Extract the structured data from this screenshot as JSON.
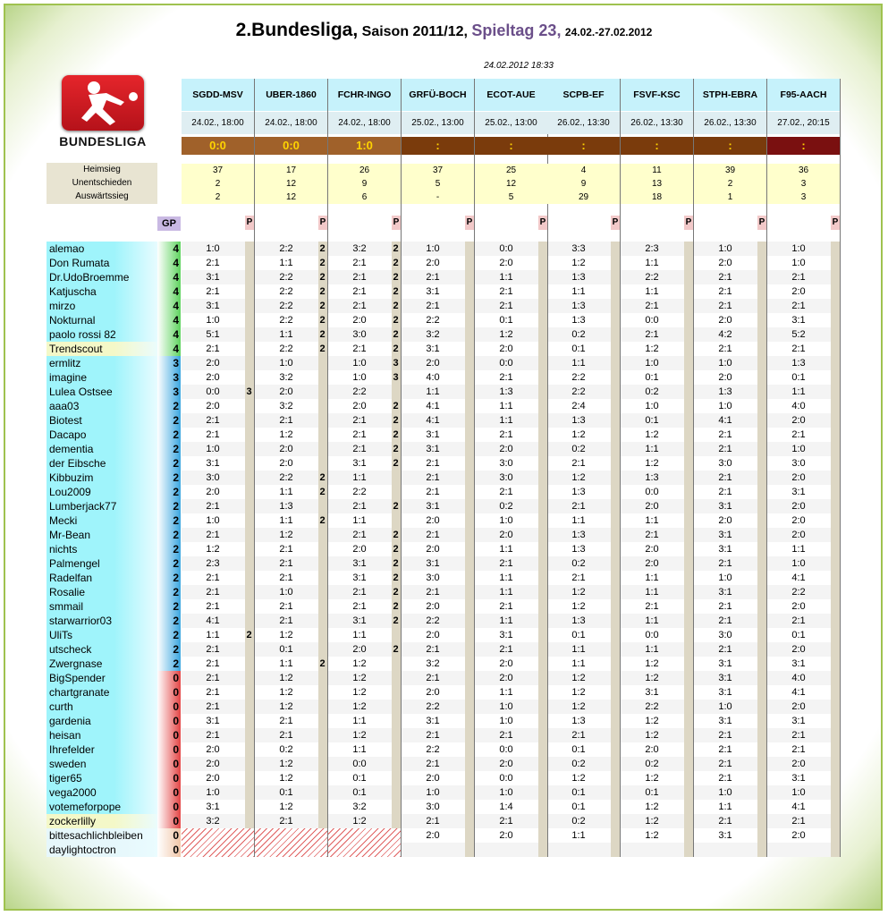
{
  "title": {
    "league": "2.Bundesliga,",
    "season": "Saison 2011/12,",
    "matchday": "Spieltag 23,",
    "dates": "24.02.-27.02.2012"
  },
  "updated": "24.02.2012 18:33",
  "logo_text": "BUNDESLIGA",
  "stats_labels": [
    "Heimsieg",
    "Unentschieden",
    "Auswärtssieg"
  ],
  "gp_label": "GP",
  "p_label": "P",
  "colors": {
    "played_result": "#a0612a",
    "upcoming_result": "#7a3b0c",
    "late_result": "#7a1010",
    "gp_green": "#5fd35f",
    "gp_blue": "#3ba6e0",
    "gp_red": "#e34545",
    "name_cyan": "#9ff4fb"
  },
  "matches": [
    {
      "code": "SGDD-MSV",
      "date": "24.02., 18:00",
      "result": "0:0",
      "home": "37",
      "draw": "2",
      "away": "2"
    },
    {
      "code": "UBER-1860",
      "date": "24.02., 18:00",
      "result": "0:0",
      "home": "17",
      "draw": "12",
      "away": "12"
    },
    {
      "code": "FCHR-INGO",
      "date": "24.02., 18:00",
      "result": "1:0",
      "home": "26",
      "draw": "9",
      "away": "6"
    },
    {
      "code": "GRFÜ-BOCH",
      "date": "25.02., 13:00",
      "result": ":",
      "home": "37",
      "draw": "5",
      "away": "-"
    },
    {
      "code": "ECOT-AUE",
      "date": "25.02., 13:00",
      "result": ":",
      "home": "25",
      "draw": "12",
      "away": "5"
    },
    {
      "code": "SCPB-EF",
      "date": "26.02., 13:30",
      "result": ":",
      "home": "4",
      "draw": "9",
      "away": "29"
    },
    {
      "code": "FSVF-KSC",
      "date": "26.02., 13:30",
      "result": ":",
      "home": "11",
      "draw": "13",
      "away": "18"
    },
    {
      "code": "STPH-EBRA",
      "date": "26.02., 13:30",
      "result": ":",
      "home": "39",
      "draw": "2",
      "away": "1"
    },
    {
      "code": "F95-AACH",
      "date": "27.02., 20:15",
      "result": ":",
      "home": "36",
      "draw": "3",
      "away": "3"
    }
  ],
  "players": [
    {
      "name": "alemao",
      "gp": "4",
      "tips": [
        "1:0",
        "2:2",
        "3:2",
        "1:0",
        "0:0",
        "3:3",
        "2:3",
        "1:0",
        "1:0"
      ],
      "pts": [
        "",
        "2",
        "2"
      ]
    },
    {
      "name": "Don Rumata",
      "gp": "4",
      "tips": [
        "2:1",
        "1:1",
        "2:1",
        "2:0",
        "2:0",
        "1:2",
        "1:1",
        "2:0",
        "1:0"
      ],
      "pts": [
        "",
        "2",
        "2"
      ]
    },
    {
      "name": "Dr.UdoBroemme",
      "gp": "4",
      "tips": [
        "3:1",
        "2:2",
        "2:1",
        "2:1",
        "1:1",
        "1:3",
        "2:2",
        "2:1",
        "2:1"
      ],
      "pts": [
        "",
        "2",
        "2"
      ]
    },
    {
      "name": "Katjuscha",
      "gp": "4",
      "tips": [
        "2:1",
        "2:2",
        "2:1",
        "3:1",
        "2:1",
        "1:1",
        "1:1",
        "2:1",
        "2:0"
      ],
      "pts": [
        "",
        "2",
        "2"
      ]
    },
    {
      "name": "mirzo",
      "gp": "4",
      "tips": [
        "3:1",
        "2:2",
        "2:1",
        "2:1",
        "2:1",
        "1:3",
        "2:1",
        "2:1",
        "2:1"
      ],
      "pts": [
        "",
        "2",
        "2"
      ]
    },
    {
      "name": "Nokturnal",
      "gp": "4",
      "tips": [
        "1:0",
        "2:2",
        "2:0",
        "2:2",
        "0:1",
        "1:3",
        "0:0",
        "2:0",
        "3:1"
      ],
      "pts": [
        "",
        "2",
        "2"
      ]
    },
    {
      "name": "paolo rossi 82",
      "gp": "4",
      "tips": [
        "5:1",
        "1:1",
        "3:0",
        "3:2",
        "1:2",
        "0:2",
        "2:1",
        "4:2",
        "5:2"
      ],
      "pts": [
        "",
        "2",
        "2"
      ]
    },
    {
      "name": "Trendscout",
      "gp": "4",
      "tips": [
        "2:1",
        "2:2",
        "2:1",
        "3:1",
        "2:0",
        "0:1",
        "1:2",
        "2:1",
        "2:1"
      ],
      "pts": [
        "",
        "2",
        "2"
      ]
    },
    {
      "name": "ermlitz",
      "gp": "3",
      "tips": [
        "2:0",
        "1:0",
        "1:0",
        "2:0",
        "0:0",
        "1:1",
        "1:0",
        "1:0",
        "1:3"
      ],
      "pts": [
        "",
        "",
        "3"
      ]
    },
    {
      "name": "imagine",
      "gp": "3",
      "tips": [
        "2:0",
        "3:2",
        "1:0",
        "4:0",
        "2:1",
        "2:2",
        "0:1",
        "2:0",
        "0:1"
      ],
      "pts": [
        "",
        "",
        "3"
      ]
    },
    {
      "name": "Lulea Ostsee",
      "gp": "3",
      "tips": [
        "0:0",
        "2:0",
        "2:2",
        "1:1",
        "1:3",
        "2:2",
        "0:2",
        "1:3",
        "1:1"
      ],
      "pts": [
        "3",
        "",
        ""
      ]
    },
    {
      "name": "aaa03",
      "gp": "2",
      "tips": [
        "2:0",
        "3:2",
        "2:0",
        "4:1",
        "1:1",
        "2:4",
        "1:0",
        "1:0",
        "4:0"
      ],
      "pts": [
        "",
        "",
        "2"
      ]
    },
    {
      "name": "Biotest",
      "gp": "2",
      "tips": [
        "2:1",
        "2:1",
        "2:1",
        "4:1",
        "1:1",
        "1:3",
        "0:1",
        "4:1",
        "2:0"
      ],
      "pts": [
        "",
        "",
        "2"
      ]
    },
    {
      "name": "Dacapo",
      "gp": "2",
      "tips": [
        "2:1",
        "1:2",
        "2:1",
        "3:1",
        "2:1",
        "1:2",
        "1:2",
        "2:1",
        "2:1"
      ],
      "pts": [
        "",
        "",
        "2"
      ]
    },
    {
      "name": "dementia",
      "gp": "2",
      "tips": [
        "1:0",
        "2:0",
        "2:1",
        "3:1",
        "2:0",
        "0:2",
        "1:1",
        "2:1",
        "1:0"
      ],
      "pts": [
        "",
        "",
        "2"
      ]
    },
    {
      "name": "der Eibsche",
      "gp": "2",
      "tips": [
        "3:1",
        "2:0",
        "3:1",
        "2:1",
        "3:0",
        "2:1",
        "1:2",
        "3:0",
        "3:0"
      ],
      "pts": [
        "",
        "",
        "2"
      ]
    },
    {
      "name": "Kibbuzim",
      "gp": "2",
      "tips": [
        "3:0",
        "2:2",
        "1:1",
        "2:1",
        "3:0",
        "1:2",
        "1:3",
        "2:1",
        "2:0"
      ],
      "pts": [
        "",
        "2",
        ""
      ]
    },
    {
      "name": "Lou2009",
      "gp": "2",
      "tips": [
        "2:0",
        "1:1",
        "2:2",
        "2:1",
        "2:1",
        "1:3",
        "0:0",
        "2:1",
        "3:1"
      ],
      "pts": [
        "",
        "2",
        ""
      ]
    },
    {
      "name": "Lumberjack77",
      "gp": "2",
      "tips": [
        "2:1",
        "1:3",
        "2:1",
        "3:1",
        "0:2",
        "2:1",
        "2:0",
        "3:1",
        "2:0"
      ],
      "pts": [
        "",
        "",
        "2"
      ]
    },
    {
      "name": "Mecki",
      "gp": "2",
      "tips": [
        "1:0",
        "1:1",
        "1:1",
        "2:0",
        "1:0",
        "1:1",
        "1:1",
        "2:0",
        "2:0"
      ],
      "pts": [
        "",
        "2",
        ""
      ]
    },
    {
      "name": "Mr-Bean",
      "gp": "2",
      "tips": [
        "2:1",
        "1:2",
        "2:1",
        "2:1",
        "2:0",
        "1:3",
        "2:1",
        "3:1",
        "2:0"
      ],
      "pts": [
        "",
        "",
        "2"
      ]
    },
    {
      "name": "nichts",
      "gp": "2",
      "tips": [
        "1:2",
        "2:1",
        "2:0",
        "2:0",
        "1:1",
        "1:3",
        "2:0",
        "3:1",
        "1:1"
      ],
      "pts": [
        "",
        "",
        "2"
      ]
    },
    {
      "name": "Palmengel",
      "gp": "2",
      "tips": [
        "2:3",
        "2:1",
        "3:1",
        "3:1",
        "2:1",
        "0:2",
        "2:0",
        "2:1",
        "1:0"
      ],
      "pts": [
        "",
        "",
        "2"
      ]
    },
    {
      "name": "Radelfan",
      "gp": "2",
      "tips": [
        "2:1",
        "2:1",
        "3:1",
        "3:0",
        "1:1",
        "2:1",
        "1:1",
        "1:0",
        "4:1"
      ],
      "pts": [
        "",
        "",
        "2"
      ]
    },
    {
      "name": "Rosalie",
      "gp": "2",
      "tips": [
        "2:1",
        "1:0",
        "2:1",
        "2:1",
        "1:1",
        "1:2",
        "1:1",
        "3:1",
        "2:2"
      ],
      "pts": [
        "",
        "",
        "2"
      ]
    },
    {
      "name": "smmail",
      "gp": "2",
      "tips": [
        "2:1",
        "2:1",
        "2:1",
        "2:0",
        "2:1",
        "1:2",
        "2:1",
        "2:1",
        "2:0"
      ],
      "pts": [
        "",
        "",
        "2"
      ]
    },
    {
      "name": "starwarrior03",
      "gp": "2",
      "tips": [
        "4:1",
        "2:1",
        "3:1",
        "2:2",
        "1:1",
        "1:3",
        "1:1",
        "2:1",
        "2:1"
      ],
      "pts": [
        "",
        "",
        "2"
      ]
    },
    {
      "name": "UliTs",
      "gp": "2",
      "tips": [
        "1:1",
        "1:2",
        "1:1",
        "2:0",
        "3:1",
        "0:1",
        "0:0",
        "3:0",
        "0:1"
      ],
      "pts": [
        "2",
        "",
        ""
      ]
    },
    {
      "name": "utscheck",
      "gp": "2",
      "tips": [
        "2:1",
        "0:1",
        "2:0",
        "2:1",
        "2:1",
        "1:1",
        "1:1",
        "2:1",
        "2:0"
      ],
      "pts": [
        "",
        "",
        "2"
      ]
    },
    {
      "name": "Zwergnase",
      "gp": "2",
      "tips": [
        "2:1",
        "1:1",
        "1:2",
        "3:2",
        "2:0",
        "1:1",
        "1:2",
        "3:1",
        "3:1"
      ],
      "pts": [
        "",
        "2",
        ""
      ]
    },
    {
      "name": "BigSpender",
      "gp": "0",
      "tips": [
        "2:1",
        "1:2",
        "1:2",
        "2:1",
        "2:0",
        "1:2",
        "1:2",
        "3:1",
        "4:0"
      ],
      "pts": [
        "",
        "",
        ""
      ]
    },
    {
      "name": "chartgranate",
      "gp": "0",
      "tips": [
        "2:1",
        "1:2",
        "1:2",
        "2:0",
        "1:1",
        "1:2",
        "3:1",
        "3:1",
        "4:1"
      ],
      "pts": [
        "",
        "",
        ""
      ]
    },
    {
      "name": "curth",
      "gp": "0",
      "tips": [
        "2:1",
        "1:2",
        "1:2",
        "2:2",
        "1:0",
        "1:2",
        "2:2",
        "1:0",
        "2:0"
      ],
      "pts": [
        "",
        "",
        ""
      ]
    },
    {
      "name": "gardenia",
      "gp": "0",
      "tips": [
        "3:1",
        "2:1",
        "1:1",
        "3:1",
        "1:0",
        "1:3",
        "1:2",
        "3:1",
        "3:1"
      ],
      "pts": [
        "",
        "",
        ""
      ]
    },
    {
      "name": "heisan",
      "gp": "0",
      "tips": [
        "2:1",
        "2:1",
        "1:2",
        "2:1",
        "2:1",
        "2:1",
        "1:2",
        "2:1",
        "2:1"
      ],
      "pts": [
        "",
        "",
        ""
      ]
    },
    {
      "name": "Ihrefelder",
      "gp": "0",
      "tips": [
        "2:0",
        "0:2",
        "1:1",
        "2:2",
        "0:0",
        "0:1",
        "2:0",
        "2:1",
        "2:1"
      ],
      "pts": [
        "",
        "",
        ""
      ]
    },
    {
      "name": "sweden",
      "gp": "0",
      "tips": [
        "2:0",
        "1:2",
        "0:0",
        "2:1",
        "2:0",
        "0:2",
        "0:2",
        "2:1",
        "2:0"
      ],
      "pts": [
        "",
        "",
        ""
      ]
    },
    {
      "name": "tiger65",
      "gp": "0",
      "tips": [
        "2:0",
        "1:2",
        "0:1",
        "2:0",
        "0:0",
        "1:2",
        "1:2",
        "2:1",
        "3:1"
      ],
      "pts": [
        "",
        "",
        ""
      ]
    },
    {
      "name": "vega2000",
      "gp": "0",
      "tips": [
        "1:0",
        "0:1",
        "0:1",
        "1:0",
        "1:0",
        "0:1",
        "0:1",
        "1:0",
        "1:0"
      ],
      "pts": [
        "",
        "",
        ""
      ]
    },
    {
      "name": "votemeforpope",
      "gp": "0",
      "tips": [
        "3:1",
        "1:2",
        "3:2",
        "3:0",
        "1:4",
        "0:1",
        "1:2",
        "1:1",
        "4:1"
      ],
      "pts": [
        "",
        "",
        ""
      ]
    },
    {
      "name": "zockerlilly",
      "gp": "0",
      "tips": [
        "3:2",
        "2:1",
        "1:2",
        "2:1",
        "2:1",
        "0:2",
        "1:2",
        "2:1",
        "2:1"
      ],
      "pts": [
        "",
        "",
        ""
      ]
    },
    {
      "name": "bittesachlichbleiben",
      "gp": "0",
      "tips": [
        "",
        "",
        "",
        "2:0",
        "2:0",
        "1:1",
        "1:2",
        "3:1",
        "2:0"
      ],
      "pts": [
        "",
        "",
        ""
      ]
    },
    {
      "name": "daylightoctron",
      "gp": "0",
      "tips": [
        "",
        "",
        "",
        "",
        "",
        "",
        "",
        "",
        ""
      ],
      "pts": [
        "",
        "",
        ""
      ]
    }
  ]
}
